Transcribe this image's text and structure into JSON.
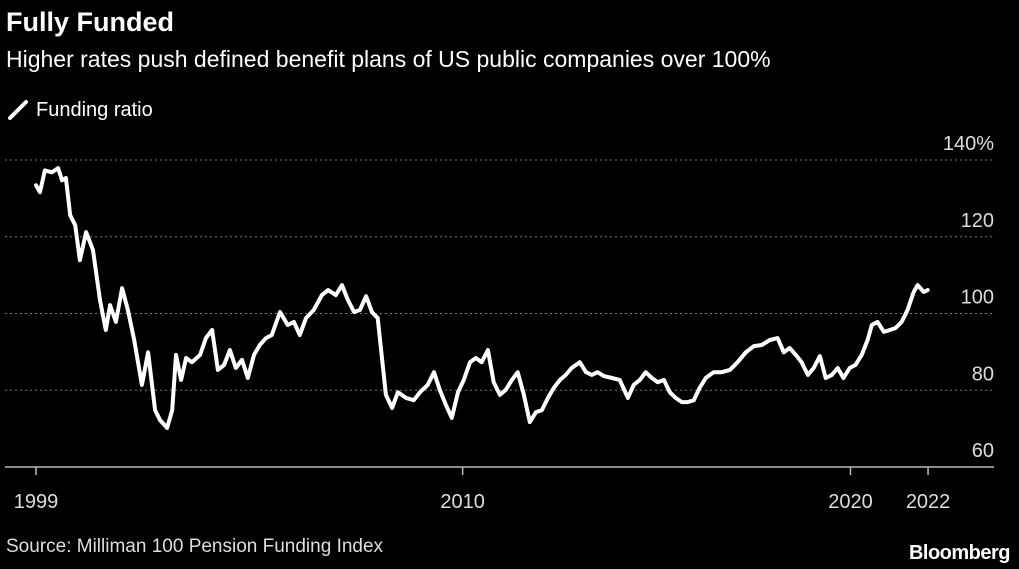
{
  "chart_data": {
    "type": "line",
    "title": "Fully Funded",
    "subtitle": "Higher rates push defined benefit plans of US public companies over 100%",
    "source": "Source: Milliman 100 Pension Funding Index",
    "logo": "Bloomberg",
    "grid": true,
    "legend": "top-left",
    "xlim": [
      1998.2,
      2023.7
    ],
    "xticks": [
      1999,
      2010,
      2020,
      2022
    ],
    "ylim": [
      60,
      140
    ],
    "yticks": [
      60,
      80,
      100,
      120,
      {
        "value": 140,
        "label": "140%"
      }
    ],
    "x": [
      1999.0,
      1999.1,
      1999.23,
      1999.41,
      1999.57,
      1999.67,
      1999.77,
      1999.88,
      2000.01,
      2000.13,
      2000.29,
      2000.47,
      2000.65,
      2000.8,
      2000.91,
      2001.06,
      2001.22,
      2001.37,
      2001.53,
      2001.73,
      2001.89,
      2002.07,
      2002.2,
      2002.38,
      2002.51,
      2002.61,
      2002.74,
      2002.87,
      2003.02,
      2003.23,
      2003.38,
      2003.54,
      2003.69,
      2003.85,
      2004.0,
      2004.15,
      2004.31,
      2004.46,
      2004.62,
      2004.77,
      2004.93,
      2005.08,
      2005.29,
      2005.49,
      2005.65,
      2005.8,
      2005.96,
      2006.16,
      2006.37,
      2006.53,
      2006.73,
      2006.89,
      2007.04,
      2007.2,
      2007.35,
      2007.51,
      2007.66,
      2007.81,
      2008.02,
      2008.18,
      2008.33,
      2008.54,
      2008.74,
      2008.9,
      2009.1,
      2009.26,
      2009.41,
      2009.57,
      2009.72,
      2009.88,
      2010.03,
      2010.19,
      2010.34,
      2010.49,
      2010.65,
      2010.8,
      2010.96,
      2011.11,
      2011.27,
      2011.42,
      2011.58,
      2011.73,
      2011.89,
      2012.04,
      2012.2,
      2012.35,
      2012.51,
      2012.66,
      2012.81,
      2013.02,
      2013.18,
      2013.33,
      2013.48,
      2013.64,
      2013.85,
      2014.05,
      2014.26,
      2014.41,
      2014.57,
      2014.72,
      2014.88,
      2015.03,
      2015.19,
      2015.34,
      2015.49,
      2015.65,
      2015.8,
      2015.96,
      2016.11,
      2016.27,
      2016.47,
      2016.68,
      2016.89,
      2017.09,
      2017.3,
      2017.51,
      2017.71,
      2017.92,
      2018.12,
      2018.28,
      2018.43,
      2018.59,
      2018.74,
      2018.9,
      2019.05,
      2019.21,
      2019.36,
      2019.52,
      2019.67,
      2019.82,
      2019.98,
      2020.13,
      2020.29,
      2020.44,
      2020.55,
      2020.7,
      2020.86,
      2021.01,
      2021.16,
      2021.32,
      2021.47,
      2021.63,
      2021.73,
      2021.89,
      2021.99
    ],
    "series": [
      {
        "name": "Funding ratio",
        "color": "#ffffff",
        "values": [
          133.4,
          131.6,
          137.3,
          136.8,
          137.9,
          134.7,
          135.3,
          125.6,
          123.0,
          113.9,
          121.2,
          116.5,
          103.5,
          95.7,
          102.2,
          97.8,
          106.6,
          100.9,
          93.1,
          81.4,
          89.9,
          74.8,
          72.2,
          70.2,
          74.8,
          89.2,
          82.7,
          88.4,
          87.3,
          89.2,
          93.6,
          95.7,
          85.3,
          86.6,
          90.5,
          85.8,
          87.9,
          83.2,
          89.2,
          91.8,
          93.6,
          94.4,
          100.4,
          97.0,
          97.8,
          94.4,
          98.8,
          100.9,
          104.8,
          106.1,
          104.8,
          107.4,
          103.5,
          100.4,
          100.9,
          104.5,
          100.4,
          98.8,
          78.8,
          75.4,
          79.5,
          78.0,
          77.4,
          79.5,
          81.4,
          84.7,
          80.1,
          76.1,
          72.8,
          79.5,
          82.7,
          87.3,
          88.4,
          87.3,
          90.5,
          82.1,
          78.8,
          80.1,
          82.7,
          84.7,
          78.8,
          71.7,
          74.3,
          74.8,
          78.0,
          80.6,
          82.7,
          84.0,
          85.8,
          87.3,
          84.7,
          84.0,
          84.7,
          83.7,
          83.2,
          82.7,
          78.0,
          81.4,
          82.7,
          84.7,
          83.2,
          82.1,
          82.7,
          79.5,
          78.0,
          76.9,
          76.9,
          77.4,
          80.6,
          83.2,
          84.7,
          84.7,
          85.3,
          87.3,
          89.9,
          91.5,
          91.8,
          93.1,
          93.6,
          89.9,
          91.0,
          89.2,
          87.3,
          84.0,
          85.8,
          88.9,
          83.2,
          84.0,
          85.8,
          83.2,
          85.8,
          86.6,
          89.2,
          93.1,
          97.0,
          97.8,
          95.2,
          95.7,
          96.2,
          97.8,
          100.9,
          105.6,
          107.4,
          105.6,
          106.1
        ]
      }
    ]
  }
}
